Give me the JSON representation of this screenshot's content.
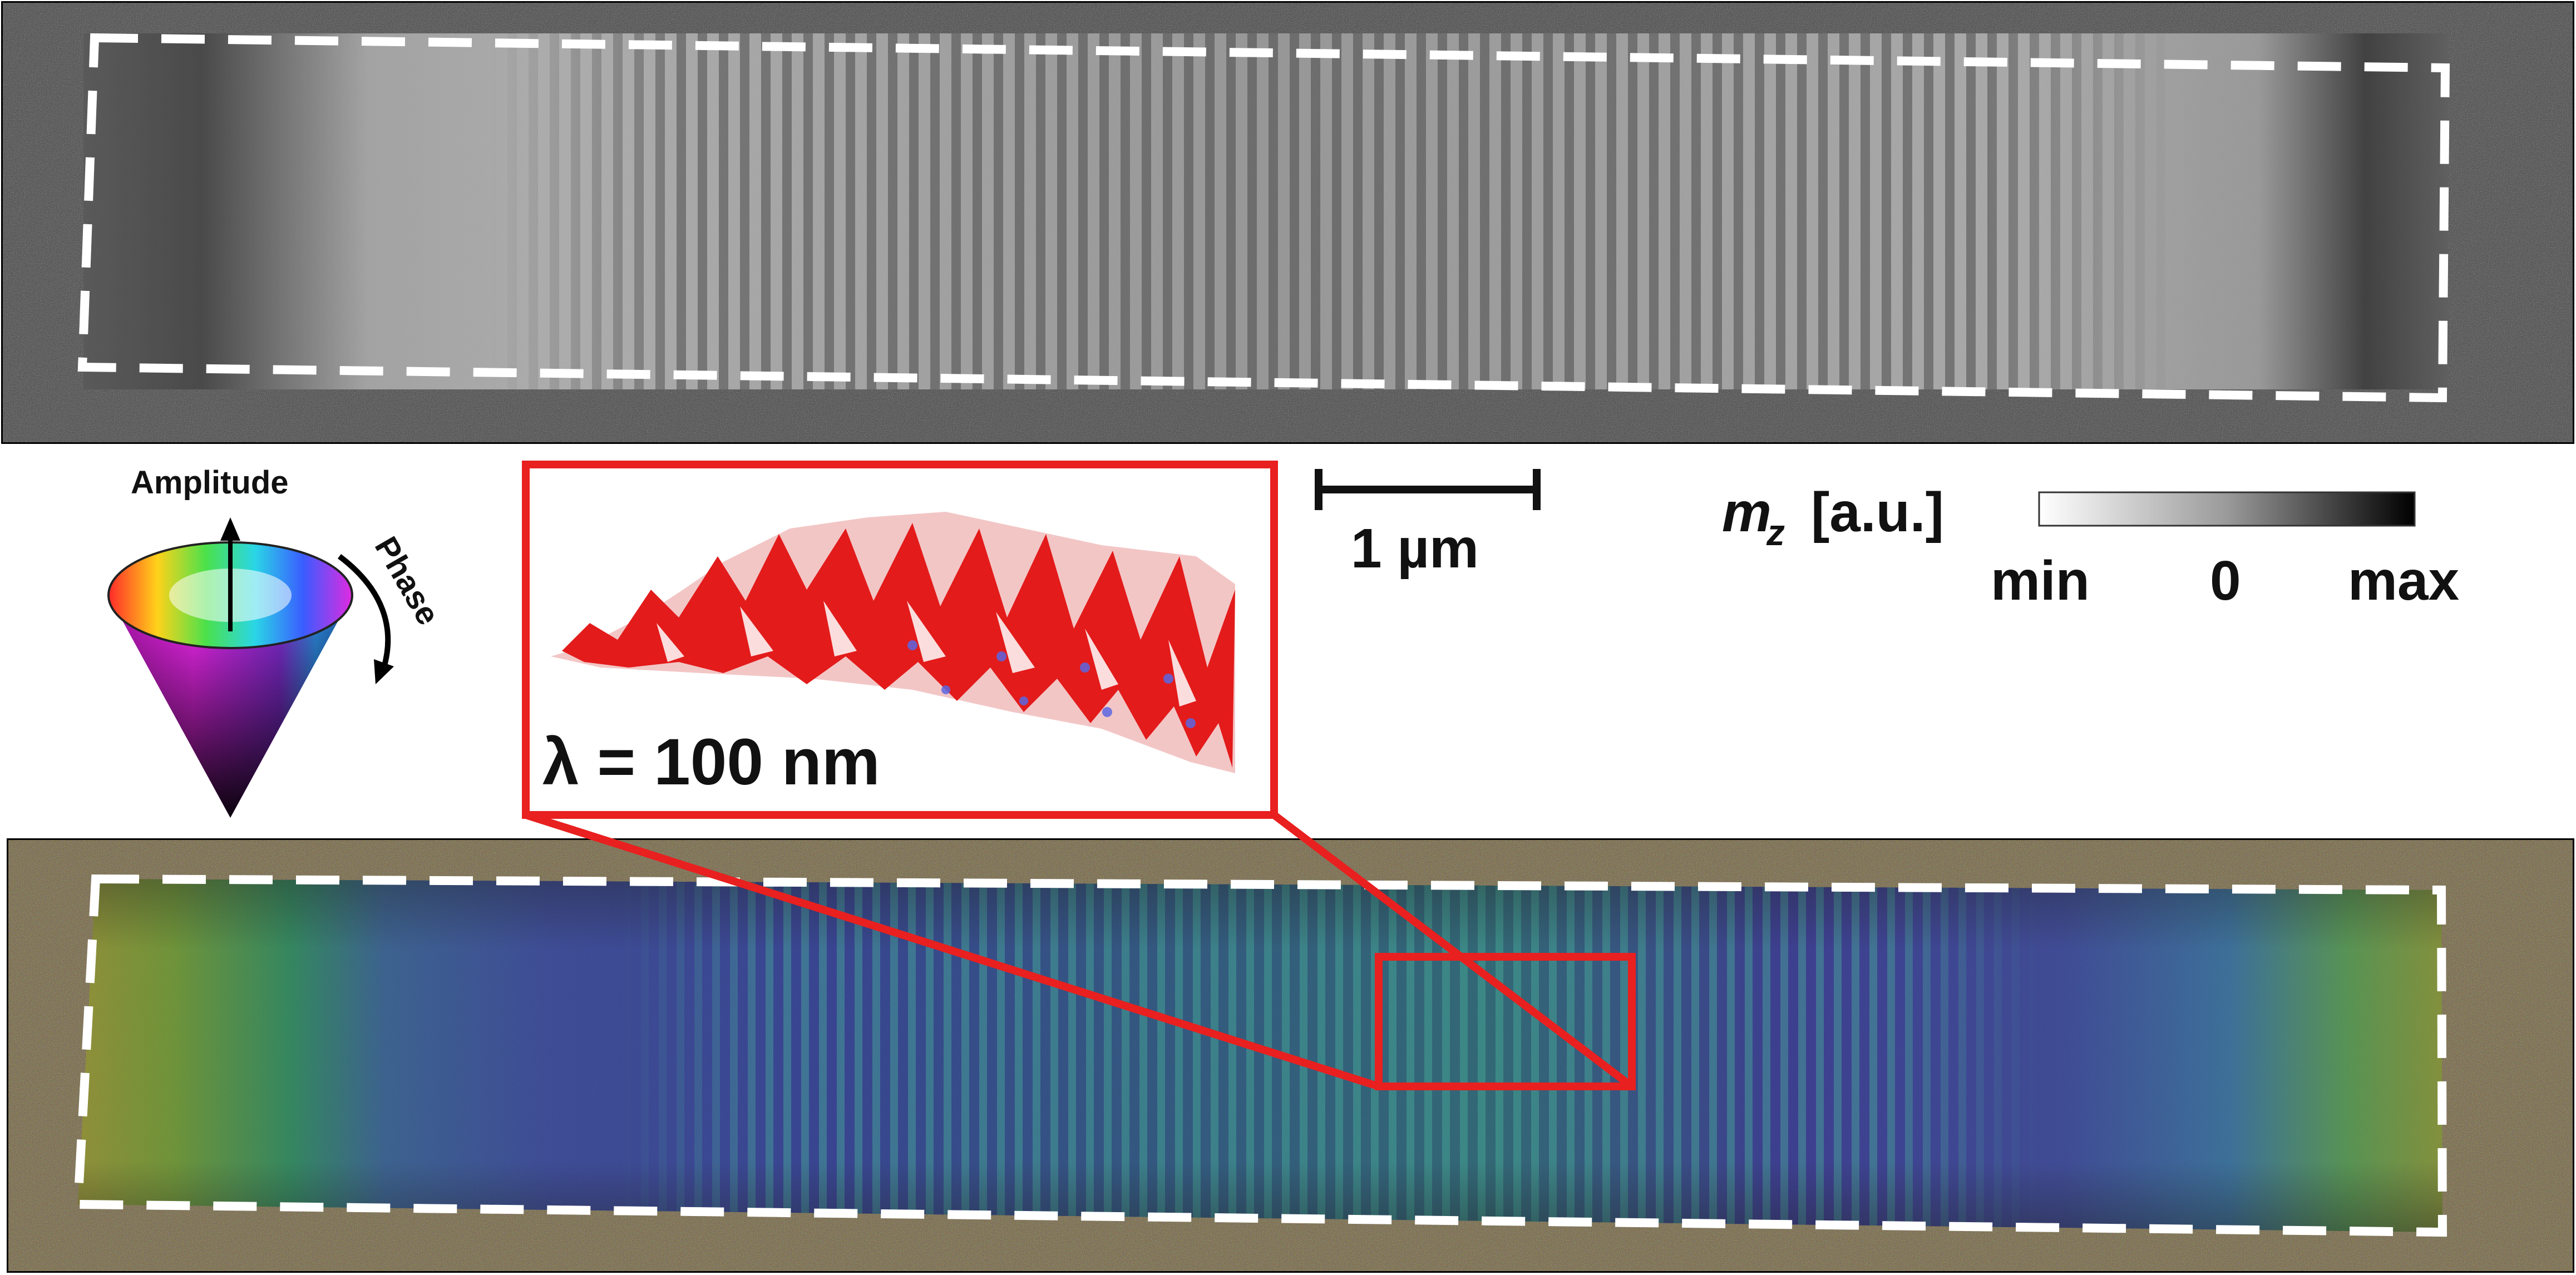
{
  "legend_cone": {
    "amplitude_label": "Amplitude",
    "phase_label": "Phase"
  },
  "inset": {
    "wavelength_label": "λ = 100 nm"
  },
  "scale_bar": {
    "label": "1 µm"
  },
  "colorbar": {
    "label_symbol": "m",
    "label_subscript": "z",
    "label_unit": "[a.u.]",
    "tick_min": "min",
    "tick_zero": "0",
    "tick_max": "max"
  },
  "colors": {
    "dashed_outline": "#ffffff",
    "zoom_box": "#e8201f",
    "top_background": "#585858",
    "bottom_background": "#7a6d4c"
  }
}
